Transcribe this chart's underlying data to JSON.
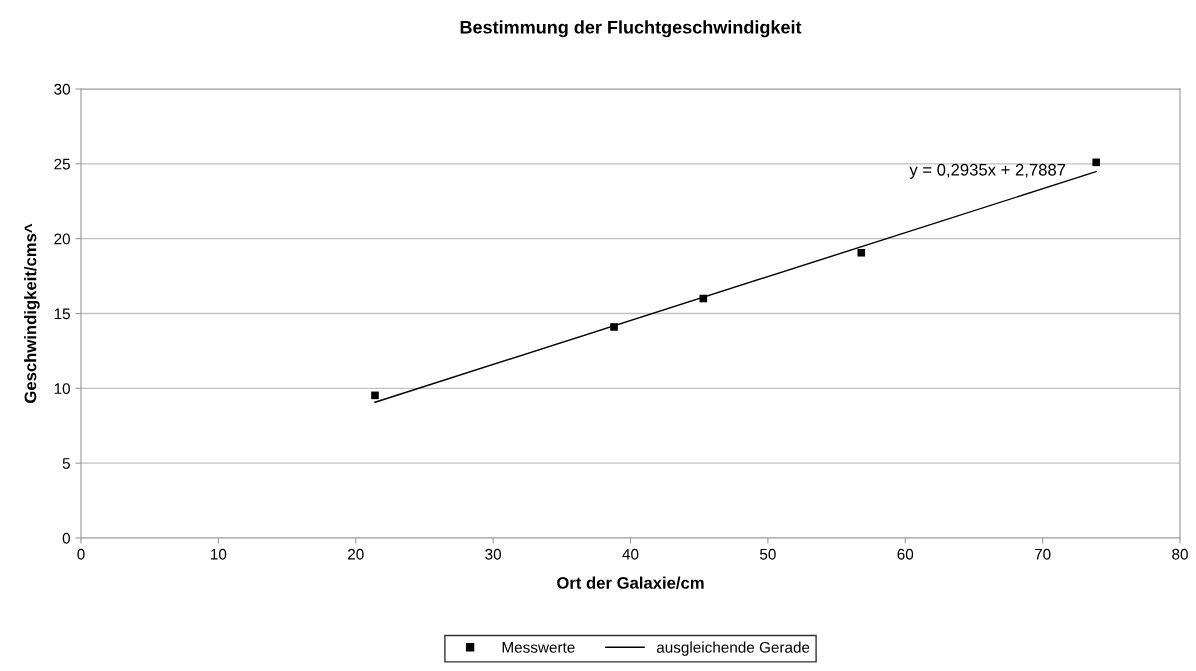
{
  "chart_data": {
    "type": "scatter",
    "title": "Bestimmung der Fluchtgeschwindigkeit",
    "xlabel": "Ort der Galaxie/cm",
    "ylabel": "Geschwindigkeit/cms^",
    "series": [
      {
        "name": "Messwerte",
        "color": "#000000",
        "marker": "square",
        "x": [
          21.4,
          38.8,
          45.3,
          56.8,
          73.9
        ],
        "values": [
          9.53,
          14.1,
          16.0,
          19.06,
          25.1
        ]
      },
      {
        "name": "ausgleichende Gerade",
        "type": "line",
        "color": "#000000",
        "marker": "none",
        "line_style": "solid",
        "x": [
          21.4,
          73.9
        ],
        "values": [
          9.07,
          24.48
        ]
      }
    ],
    "annotations": [
      "y = 0,2935x + 2,7887"
    ],
    "xlim": [
      0,
      80
    ],
    "xticks": [
      0,
      10,
      20,
      30,
      40,
      50,
      60,
      70,
      80
    ],
    "ylim": [
      0,
      30
    ],
    "yticks": [
      0,
      5,
      10,
      15,
      20,
      25,
      30
    ],
    "grid": "y",
    "legend": "bottom"
  }
}
